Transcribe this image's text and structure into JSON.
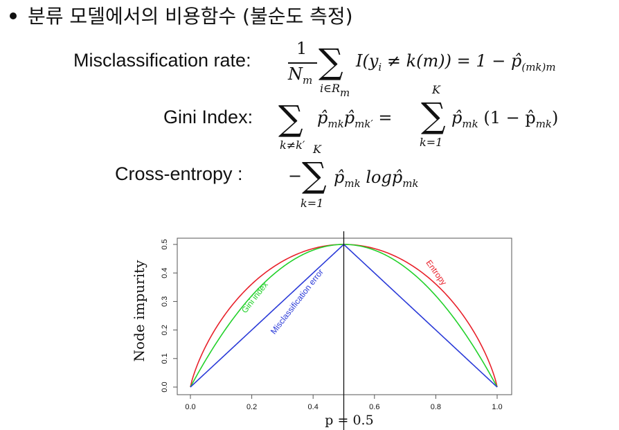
{
  "heading": "분류 모델에서의 비용함수 (불순도 측정)",
  "formulas": {
    "misclassification": {
      "label": "Misclassification rate:",
      "frac_num": "1",
      "frac_den": "N",
      "frac_den_sub": "m",
      "sum_sub": "i∈R",
      "sum_sub_sub": "m",
      "body_a": "I(y",
      "body_a_sub": "i",
      "body_b": " ≠ k(m)) = 1 − p̂",
      "body_b_sub": "(mk)m"
    },
    "gini": {
      "label": "Gini Index:",
      "sum1_sub": "k≠k′",
      "term1": "p̂",
      "term1_sub": "mk",
      "term2": "p̂",
      "term2_sub": "mk′",
      "eq": " = ",
      "sum2_sup": "K",
      "sum2_sub": "k=1",
      "term3": "p̂",
      "term3_sub": "mk",
      "term4": " (1 − p̂",
      "term4_sub": "mk",
      "term4_end": ")"
    },
    "entropy": {
      "label": "Cross-entropy  :",
      "minus": "−",
      "sum_sup": "K",
      "sum_sub": "k=1",
      "term1": "p̂",
      "term1_sub": "mk",
      "term2": " logp̂",
      "term2_sub": "mk"
    }
  },
  "chart_data": {
    "type": "line",
    "xlabel": "p = 0.5",
    "ylabel": "Node impurity",
    "xlim": [
      0,
      1
    ],
    "ylim": [
      0,
      0.5
    ],
    "x_ticks": [
      "0.0",
      "0.2",
      "0.4",
      "0.6",
      "0.8",
      "1.0"
    ],
    "y_ticks": [
      "0.0",
      "0.1",
      "0.2",
      "0.3",
      "0.4",
      "0.5"
    ],
    "vline_x": 0.5,
    "series": [
      {
        "name": "Entropy",
        "color": "#e8202a",
        "formula": "scaled_entropy",
        "label_side": "right",
        "x": [
          0,
          0.05,
          0.1,
          0.2,
          0.3,
          0.4,
          0.5,
          0.6,
          0.7,
          0.8,
          0.9,
          0.95,
          1
        ],
        "values": [
          0,
          0.143,
          0.234,
          0.361,
          0.441,
          0.485,
          0.5,
          0.485,
          0.441,
          0.361,
          0.234,
          0.143,
          0
        ]
      },
      {
        "name": "Gini index",
        "color": "#22d12a",
        "formula": "gini",
        "label_side": "left",
        "x": [
          0,
          0.1,
          0.2,
          0.3,
          0.4,
          0.5,
          0.6,
          0.7,
          0.8,
          0.9,
          1
        ],
        "values": [
          0,
          0.18,
          0.32,
          0.42,
          0.48,
          0.5,
          0.48,
          0.42,
          0.32,
          0.18,
          0
        ]
      },
      {
        "name": "Misclassification error",
        "color": "#2a3ad8",
        "formula": "misclass",
        "label_side": "left",
        "x": [
          0,
          0.5,
          1
        ],
        "values": [
          0,
          0.5,
          0
        ]
      }
    ]
  }
}
